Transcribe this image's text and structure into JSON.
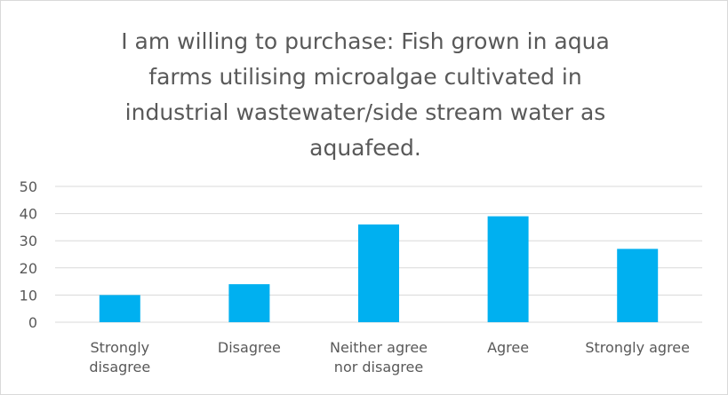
{
  "chart_data": {
    "type": "bar",
    "title": "I am willing to purchase: Fish grown in aqua\nfarms utilising microalgae cultivated in\nindustrial wastewater/side stream water as\naquafeed.",
    "categories": [
      [
        "Strongly",
        "disagree"
      ],
      [
        "Disagree"
      ],
      [
        "Neither agree",
        "nor disagree"
      ],
      [
        "Agree"
      ],
      [
        "Strongly agree"
      ]
    ],
    "values": [
      10,
      14,
      36,
      39,
      27
    ],
    "ylim": [
      0,
      50
    ],
    "yticks": [
      "0",
      "10",
      "20",
      "30",
      "40",
      "50"
    ],
    "grid": true,
    "bar_color": "#00B0F0",
    "grid_color": "#d9d9d9",
    "text_color": "#595959"
  }
}
